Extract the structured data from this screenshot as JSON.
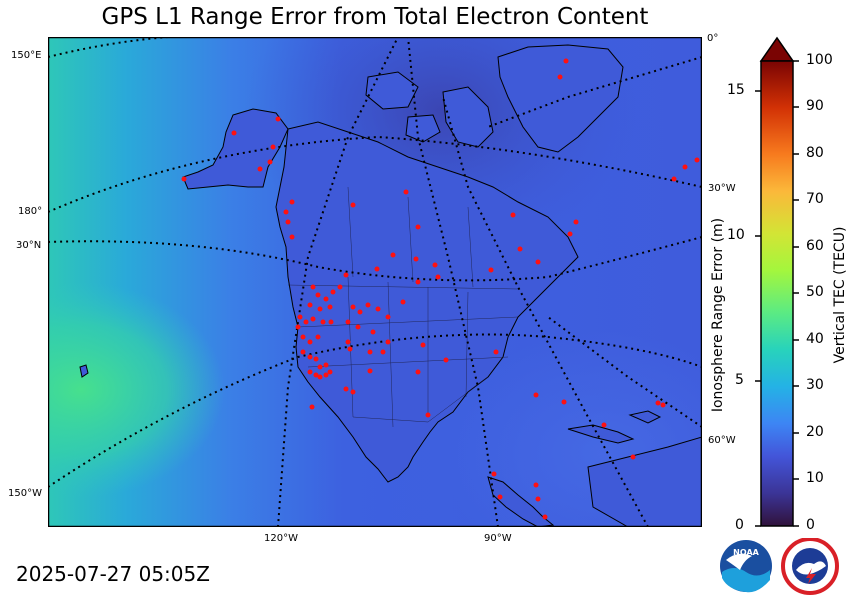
{
  "title": "GPS L1 Range Error from Total Electron Content",
  "timestamp": "2025-07-27 05:05Z",
  "graticule_labels": {
    "lon_150E": "150°E",
    "lon_180": "180°",
    "lat_30N": "30°N",
    "lon_150W": "150°W",
    "lon_120W": "120°W",
    "lon_90W": "90°W",
    "lon_0": "0°",
    "lon_30W": "30°W",
    "lon_60W": "60°W"
  },
  "colorbar": {
    "range_error_label": "Ionosphere Range Error (m)",
    "range_error_ticks": [
      "0",
      "5",
      "10",
      "15"
    ],
    "tec_label": "Vertical TEC (TECU)",
    "tec_ticks": [
      "0",
      "10",
      "20",
      "30",
      "40",
      "50",
      "60",
      "70",
      "80",
      "90",
      "100"
    ],
    "extend": "max"
  },
  "colors": {
    "map_background_low_tec": "#3d5fe0",
    "map_background_pacific": "#2bc6c0",
    "station_dot": "#ff1111",
    "coastline": "#000000"
  },
  "logos": [
    "noaa-logo",
    "national-weather-service-logo"
  ]
}
